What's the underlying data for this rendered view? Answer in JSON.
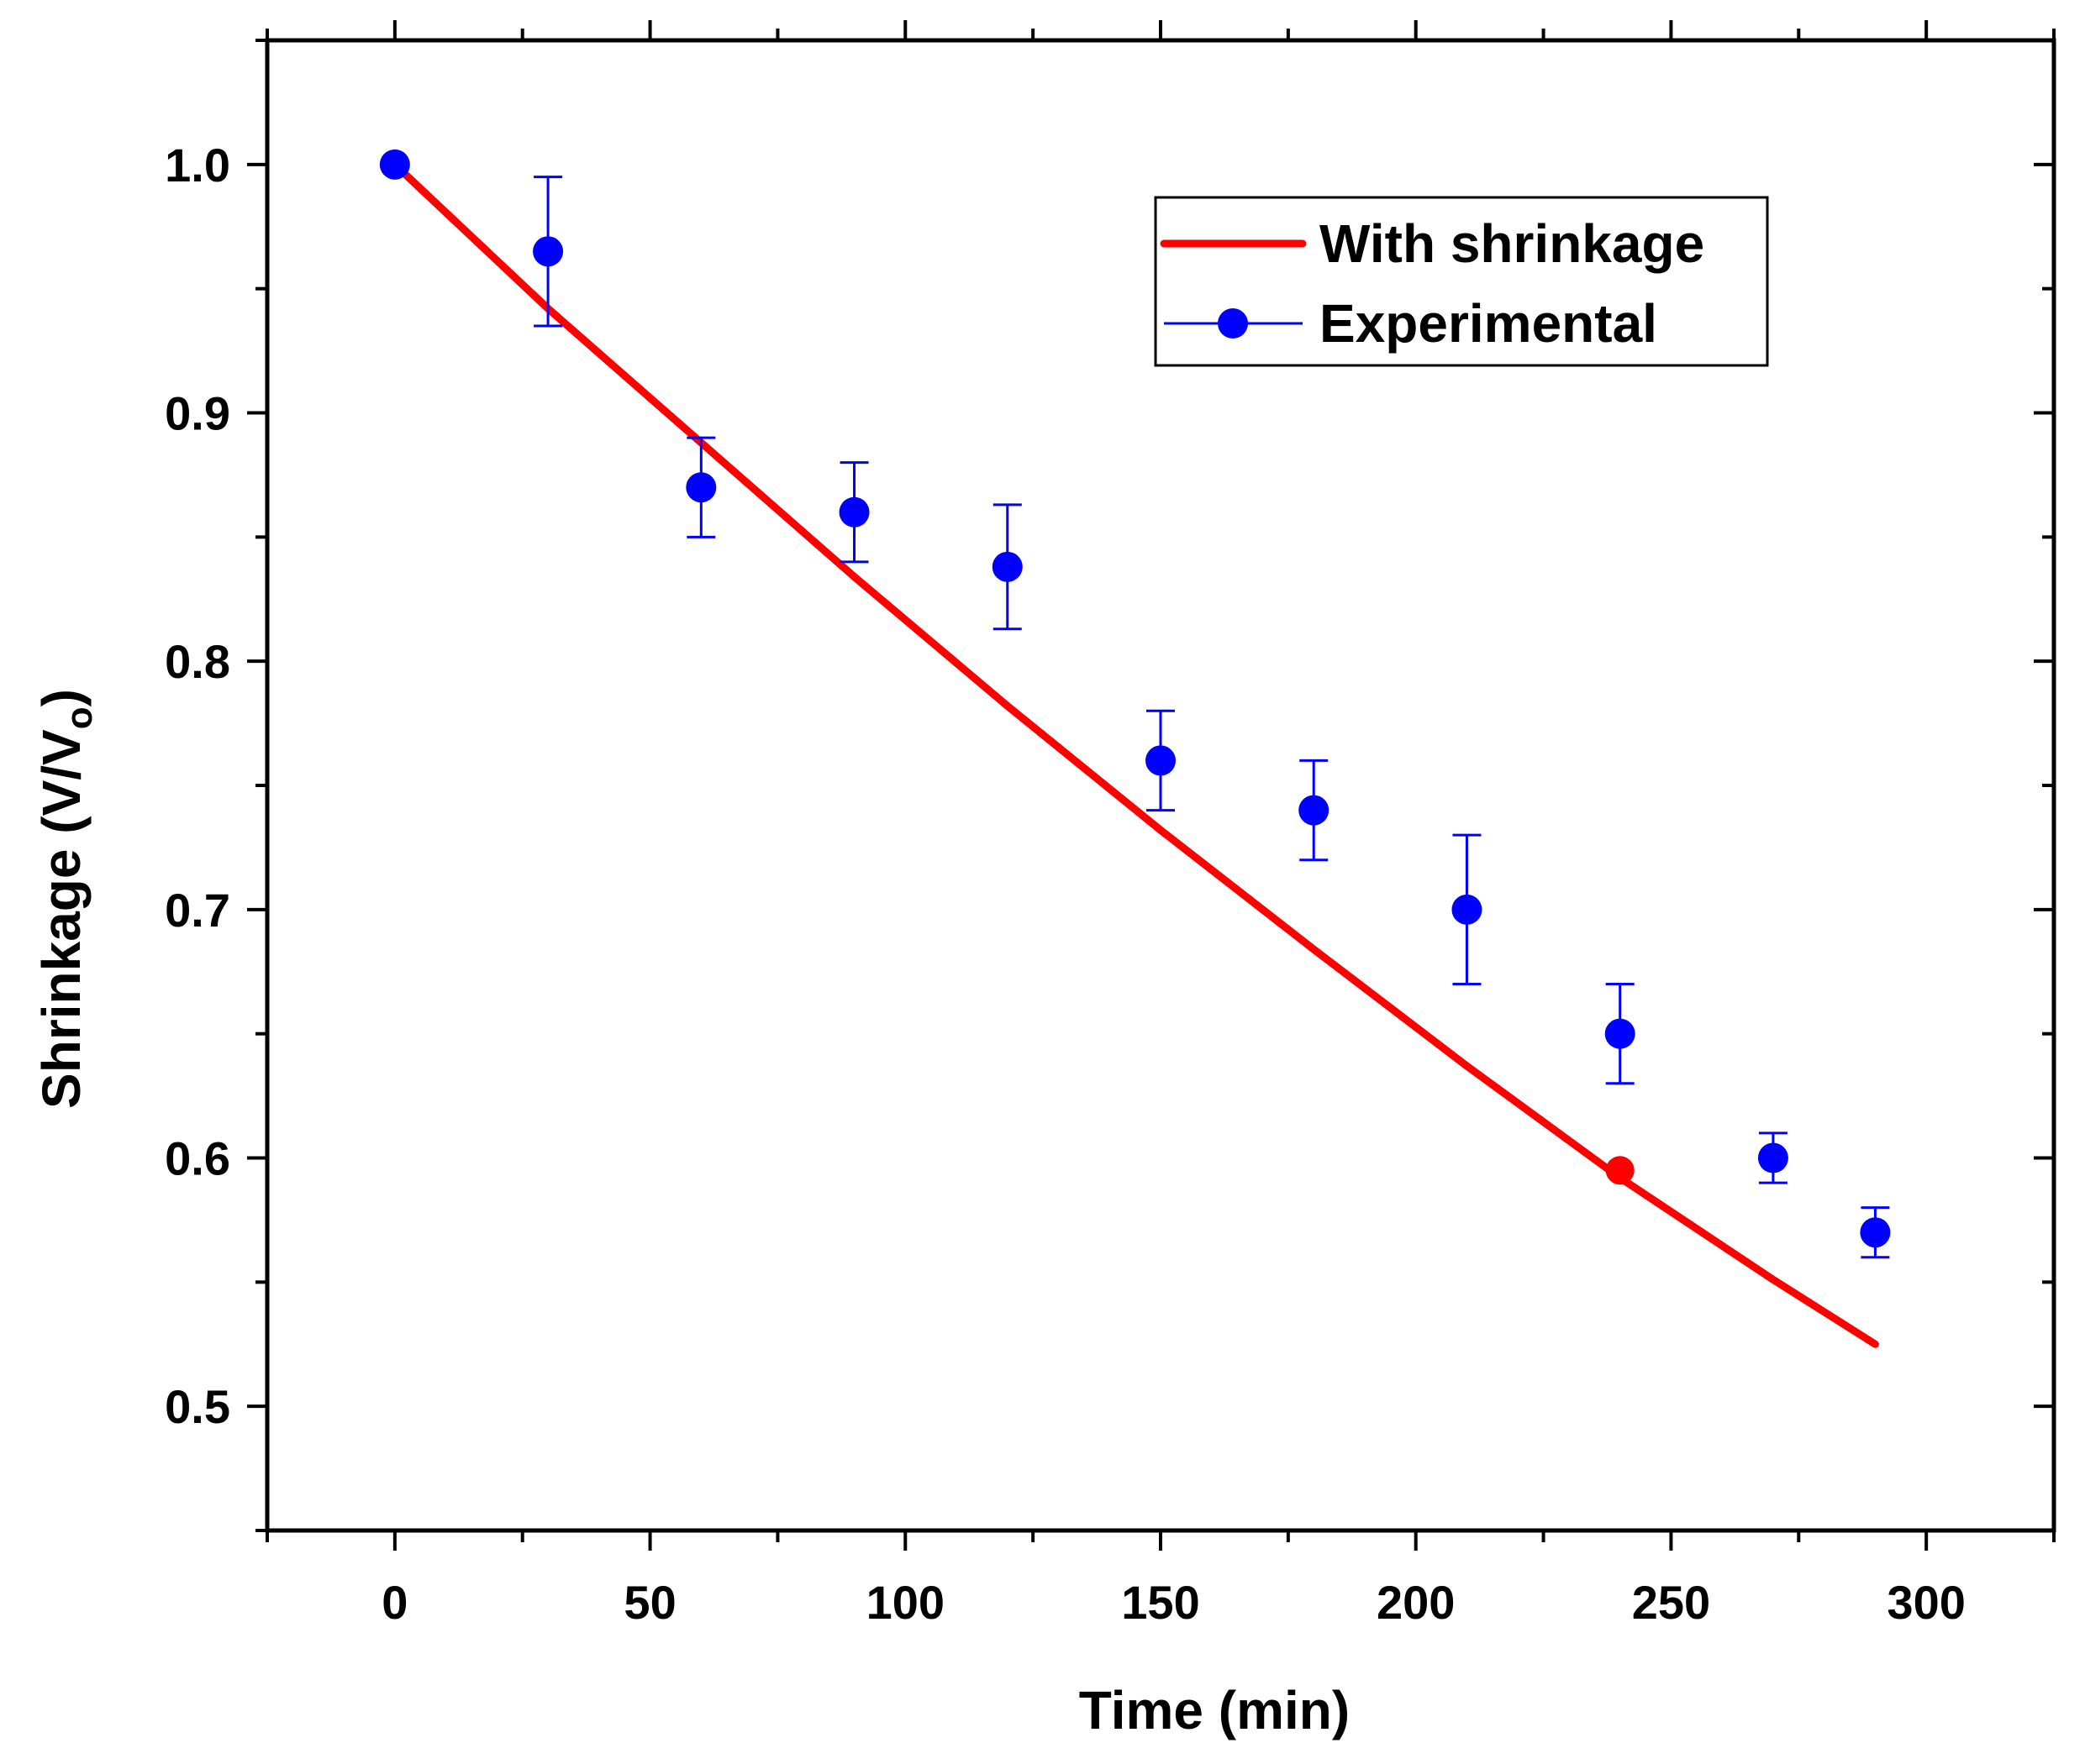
{
  "chart_data": {
    "type": "line",
    "title": "",
    "xlabel": "Time (min)",
    "ylabel": {
      "main": "Shrinkage (V/V",
      "subscript": "o",
      "close": ")"
    },
    "xlim": [
      -25,
      325
    ],
    "ylim": [
      0.45,
      1.05
    ],
    "x_major_ticks": [
      0,
      50,
      100,
      150,
      200,
      250,
      300
    ],
    "x_tick_labels": [
      "0",
      "50",
      "100",
      "150",
      "200",
      "250",
      "300"
    ],
    "y_major_ticks": [
      0.5,
      0.6,
      0.7,
      0.8,
      0.9,
      1.0
    ],
    "y_tick_labels": [
      "0.5",
      "0.6",
      "0.7",
      "0.8",
      "0.9",
      "1.0"
    ],
    "grid": false,
    "legend_position": "top-right",
    "series": [
      {
        "name": "With shrinkage",
        "kind": "line",
        "color": "#ff0000",
        "x": [
          0,
          30,
          60,
          90,
          120,
          150,
          180,
          210,
          240,
          270,
          290
        ],
        "y": [
          1.0,
          0.942,
          0.888,
          0.834,
          0.782,
          0.732,
          0.684,
          0.637,
          0.592,
          0.551,
          0.525
        ],
        "highlight_point": {
          "x": 240,
          "y": 0.595
        }
      },
      {
        "name": "Experimental",
        "kind": "scatter",
        "color": "#0000ff",
        "x": [
          0,
          30,
          60,
          90,
          120,
          150,
          180,
          210,
          240,
          270,
          290
        ],
        "y": [
          1.0,
          0.965,
          0.87,
          0.86,
          0.838,
          0.76,
          0.74,
          0.7,
          0.65,
          0.6,
          0.57
        ],
        "error": [
          0,
          0.03,
          0.02,
          0.02,
          0.025,
          0.02,
          0.02,
          0.03,
          0.02,
          0.01,
          0.01
        ]
      }
    ]
  }
}
